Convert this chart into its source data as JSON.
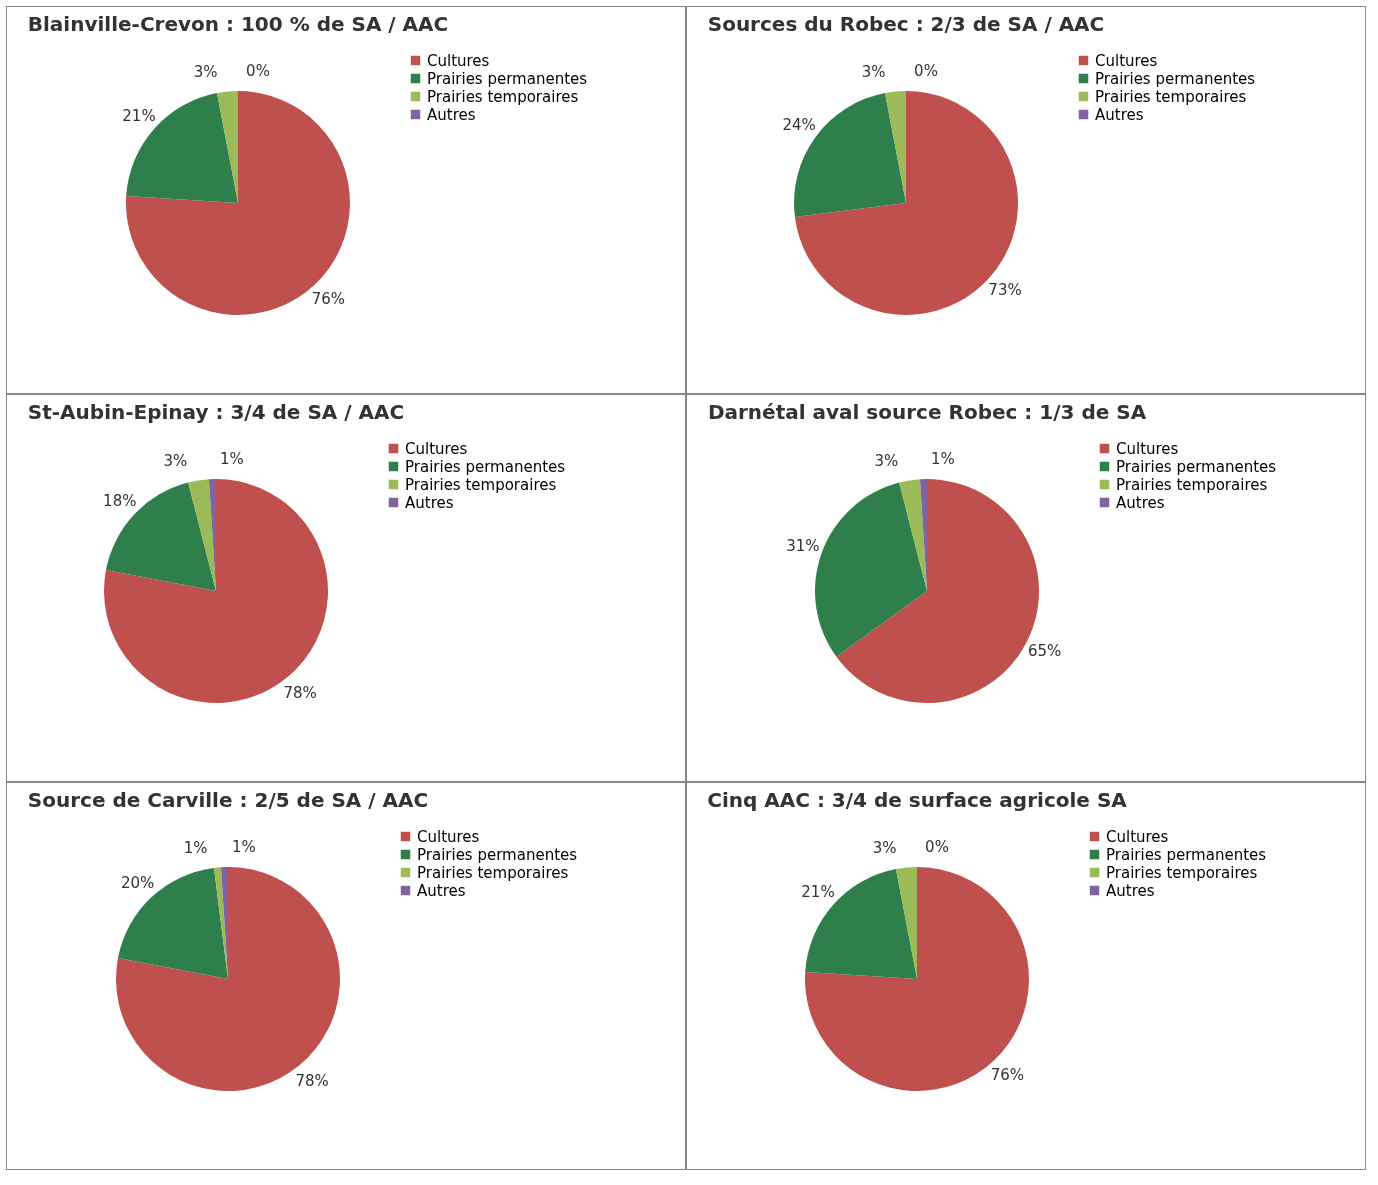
{
  "chart_data": [
    {
      "type": "pie",
      "title": "Blainville-Crevon : 100 % de SA / AAC",
      "categories": [
        "Cultures",
        "Prairies permanentes",
        "Prairies temporaires",
        "Autres"
      ],
      "values": [
        76,
        21,
        3,
        0
      ],
      "value_labels": [
        "76%",
        "21%",
        "3%",
        "0%"
      ],
      "colors": [
        "#c0504d",
        "#2f7f4c",
        "#9bbb59",
        "#8064a2"
      ],
      "legend": "right"
    },
    {
      "type": "pie",
      "title": "Sources du Robec : 2/3 de SA / AAC",
      "categories": [
        "Cultures",
        "Prairies permanentes",
        "Prairies temporaires",
        "Autres"
      ],
      "values": [
        73,
        24,
        3,
        0
      ],
      "value_labels": [
        "73%",
        "24%",
        "3%",
        "0%"
      ],
      "colors": [
        "#c0504d",
        "#2f7f4c",
        "#9bbb59",
        "#8064a2"
      ],
      "legend": "right"
    },
    {
      "type": "pie",
      "title": "St-Aubin-Epinay : 3/4 de SA / AAC",
      "categories": [
        "Cultures",
        "Prairies permanentes",
        "Prairies temporaires",
        "Autres"
      ],
      "values": [
        78,
        18,
        3,
        1
      ],
      "value_labels": [
        "78%",
        "18%",
        "3%",
        "1%"
      ],
      "colors": [
        "#c0504d",
        "#2f7f4c",
        "#9bbb59",
        "#8064a2"
      ],
      "legend": "right"
    },
    {
      "type": "pie",
      "title": "Darnétal aval source Robec : 1/3 de SA",
      "categories": [
        "Cultures",
        "Prairies permanentes",
        "Prairies temporaires",
        "Autres"
      ],
      "values": [
        65,
        31,
        3,
        1
      ],
      "value_labels": [
        "65%",
        "31%",
        "3%",
        "1%"
      ],
      "colors": [
        "#c0504d",
        "#2f7f4c",
        "#9bbb59",
        "#8064a2"
      ],
      "legend": "right"
    },
    {
      "type": "pie",
      "title": "Source de Carville : 2/5 de SA / AAC",
      "categories": [
        "Cultures",
        "Prairies permanentes",
        "Prairies temporaires",
        "Autres"
      ],
      "values": [
        78,
        20,
        1,
        1
      ],
      "value_labels": [
        "78%",
        "20%",
        "1%",
        "1%"
      ],
      "colors": [
        "#c0504d",
        "#2f7f4c",
        "#9bbb59",
        "#8064a2"
      ],
      "legend": "right"
    },
    {
      "type": "pie",
      "title": "Cinq AAC : 3/4 de surface agricole SA",
      "categories": [
        "Cultures",
        "Prairies permanentes",
        "Prairies temporaires",
        "Autres"
      ],
      "values": [
        76,
        21,
        3,
        0
      ],
      "value_labels": [
        "76%",
        "21%",
        "3%",
        "0%"
      ],
      "colors": [
        "#c0504d",
        "#2f7f4c",
        "#9bbb59",
        "#8064a2"
      ],
      "legend": "right"
    }
  ]
}
